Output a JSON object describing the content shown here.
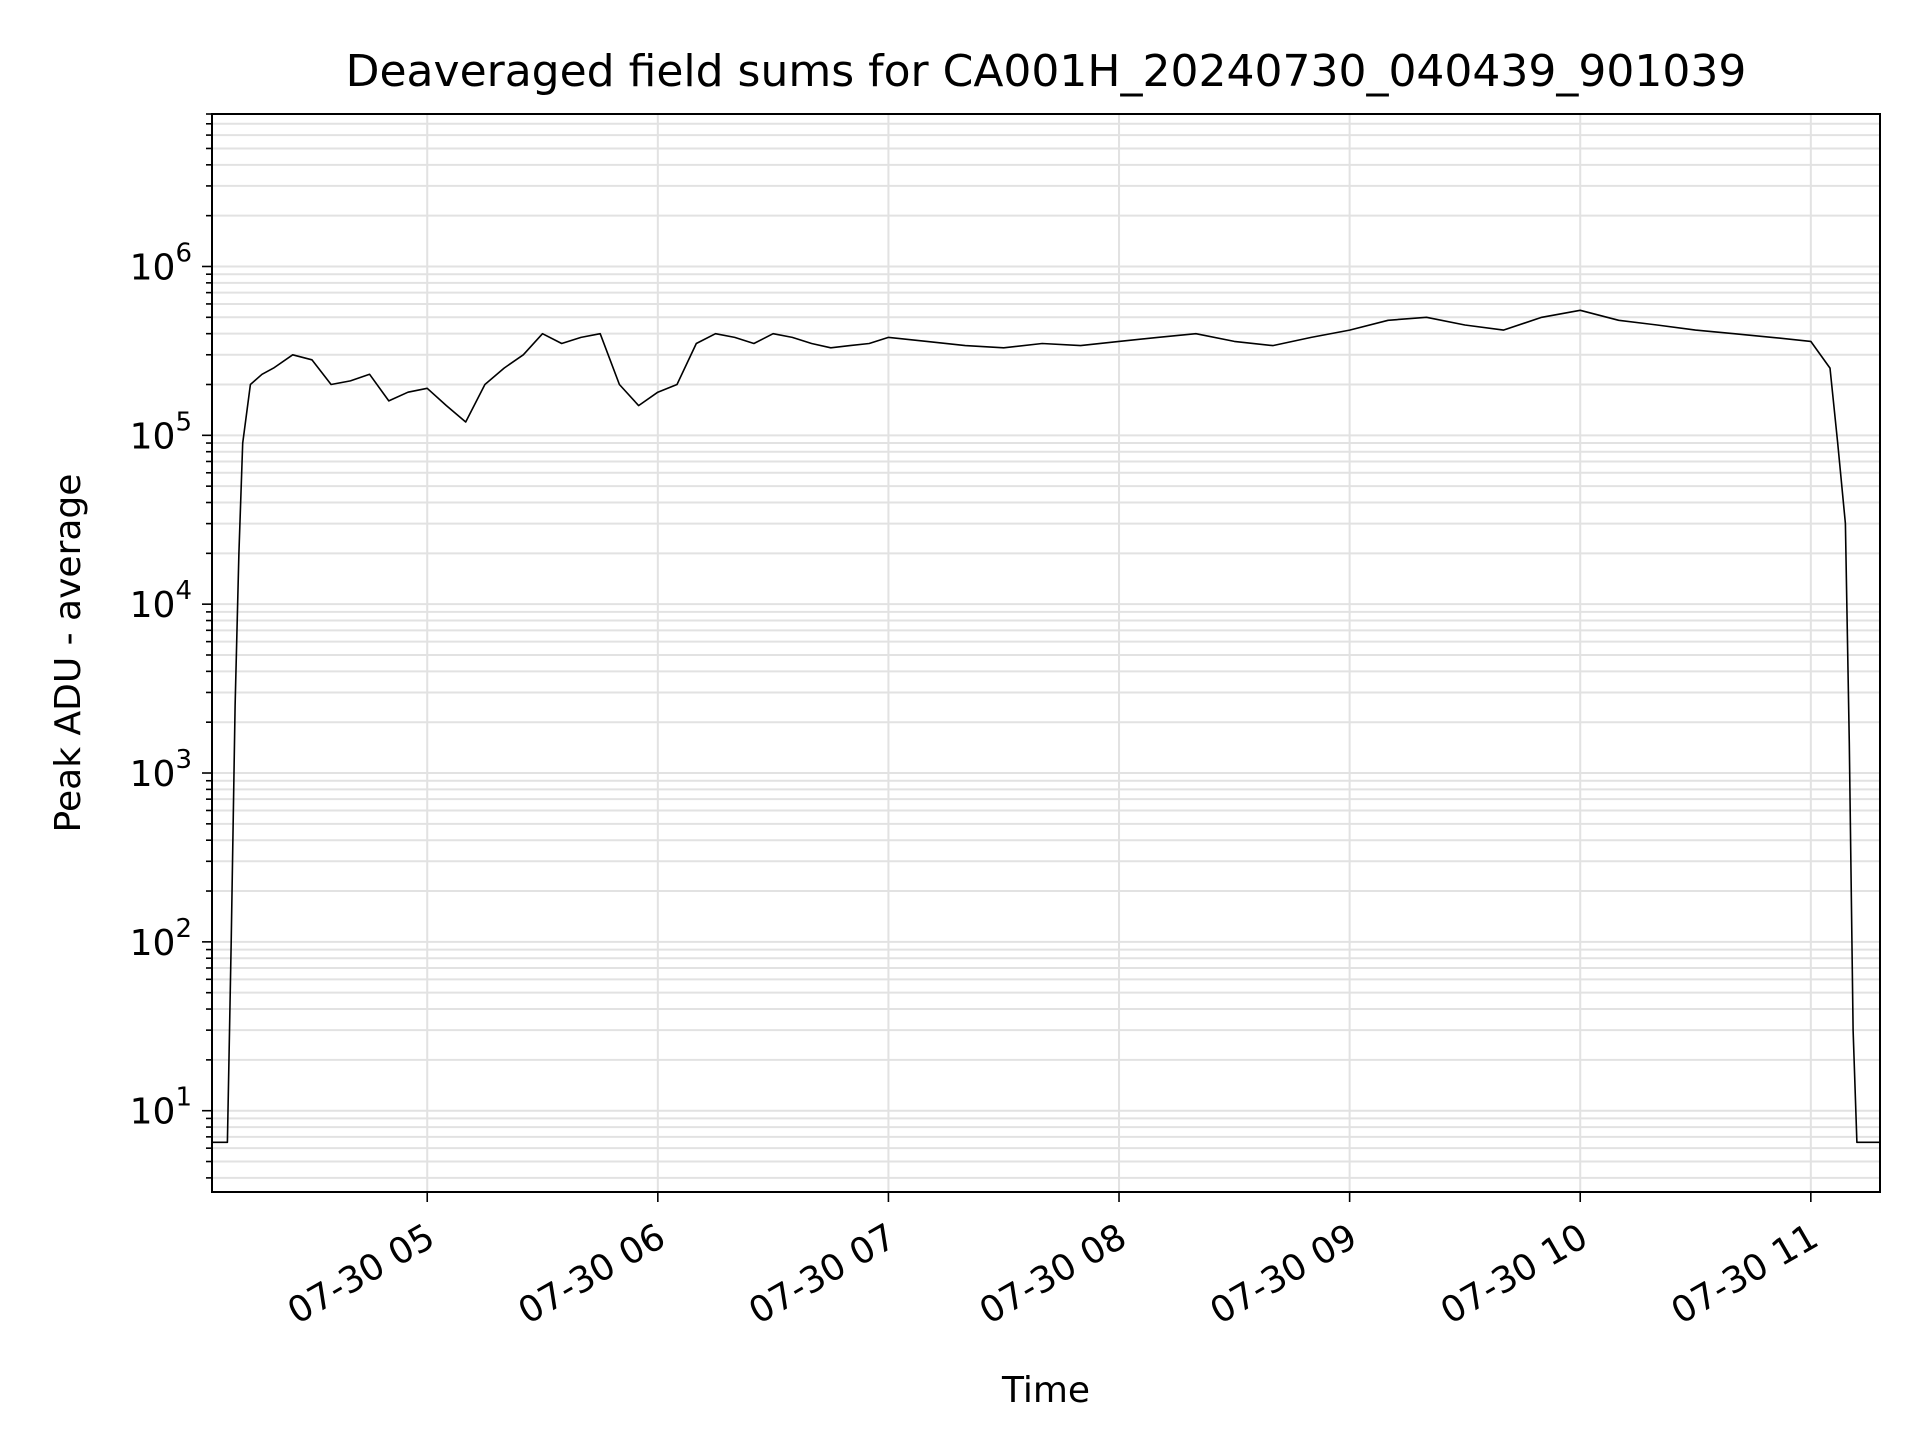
{
  "chart_data": {
    "type": "line",
    "title": "Deaveraged field sums for CA001H_20240730_040439_901039",
    "xlabel": "Time",
    "ylabel": "Peak ADU - average",
    "yscale": "log",
    "xlim": [
      "07-30 04:04",
      "07-30 11:18"
    ],
    "ylim": [
      3.3,
      8000000
    ],
    "grid": true,
    "xticks": [
      "07-30 05",
      "07-30 06",
      "07-30 07",
      "07-30 08",
      "07-30 09",
      "07-30 10",
      "07-30 11"
    ],
    "yticks": [
      {
        "base": "10",
        "exp": "1",
        "value": 10
      },
      {
        "base": "10",
        "exp": "2",
        "value": 100
      },
      {
        "base": "10",
        "exp": "3",
        "value": 1000
      },
      {
        "base": "10",
        "exp": "4",
        "value": 10000
      },
      {
        "base": "10",
        "exp": "5",
        "value": 100000
      },
      {
        "base": "10",
        "exp": "6",
        "value": 1000000
      }
    ],
    "line_color": "#000000",
    "series": [
      {
        "x": [
          "07-30 04:04",
          "07-30 04:08",
          "07-30 04:09",
          "07-30 04:10",
          "07-30 04:11",
          "07-30 04:12",
          "07-30 04:14",
          "07-30 04:17",
          "07-30 04:20",
          "07-30 04:25",
          "07-30 04:30",
          "07-30 04:35",
          "07-30 04:40",
          "07-30 04:45",
          "07-30 04:50",
          "07-30 04:55",
          "07-30 05:00",
          "07-30 05:05",
          "07-30 05:10",
          "07-30 05:15",
          "07-30 05:20",
          "07-30 05:25",
          "07-30 05:30",
          "07-30 05:35",
          "07-30 05:40",
          "07-30 05:45",
          "07-30 05:50",
          "07-30 05:55",
          "07-30 06:00",
          "07-30 06:05",
          "07-30 06:10",
          "07-30 06:15",
          "07-30 06:20",
          "07-30 06:25",
          "07-30 06:30",
          "07-30 06:35",
          "07-30 06:40",
          "07-30 06:45",
          "07-30 06:50",
          "07-30 06:55",
          "07-30 07:00",
          "07-30 07:10",
          "07-30 07:20",
          "07-30 07:30",
          "07-30 07:40",
          "07-30 07:50",
          "07-30 08:00",
          "07-30 08:10",
          "07-30 08:20",
          "07-30 08:30",
          "07-30 08:40",
          "07-30 08:50",
          "07-30 09:00",
          "07-30 09:10",
          "07-30 09:20",
          "07-30 09:30",
          "07-30 09:40",
          "07-30 09:50",
          "07-30 10:00",
          "07-30 10:10",
          "07-30 10:20",
          "07-30 10:30",
          "07-30 10:40",
          "07-30 10:50",
          "07-30 11:00",
          "07-30 11:05",
          "07-30 11:07",
          "07-30 11:09",
          "07-30 11:10",
          "07-30 11:11",
          "07-30 11:12",
          "07-30 11:13",
          "07-30 11:18"
        ],
        "y": [
          6.5,
          6.5,
          100,
          2500,
          20000,
          90000,
          200000,
          230000,
          250000,
          300000,
          280000,
          200000,
          210000,
          230000,
          160000,
          180000,
          190000,
          150000,
          120000,
          200000,
          250000,
          300000,
          400000,
          350000,
          380000,
          400000,
          200000,
          150000,
          180000,
          200000,
          350000,
          400000,
          380000,
          350000,
          400000,
          380000,
          350000,
          330000,
          340000,
          350000,
          380000,
          360000,
          340000,
          330000,
          350000,
          340000,
          360000,
          380000,
          400000,
          360000,
          340000,
          380000,
          420000,
          480000,
          500000,
          450000,
          420000,
          500000,
          550000,
          480000,
          450000,
          420000,
          400000,
          380000,
          360000,
          250000,
          90000,
          30000,
          1500,
          30,
          6.5,
          6.5,
          6.5
        ]
      }
    ]
  }
}
